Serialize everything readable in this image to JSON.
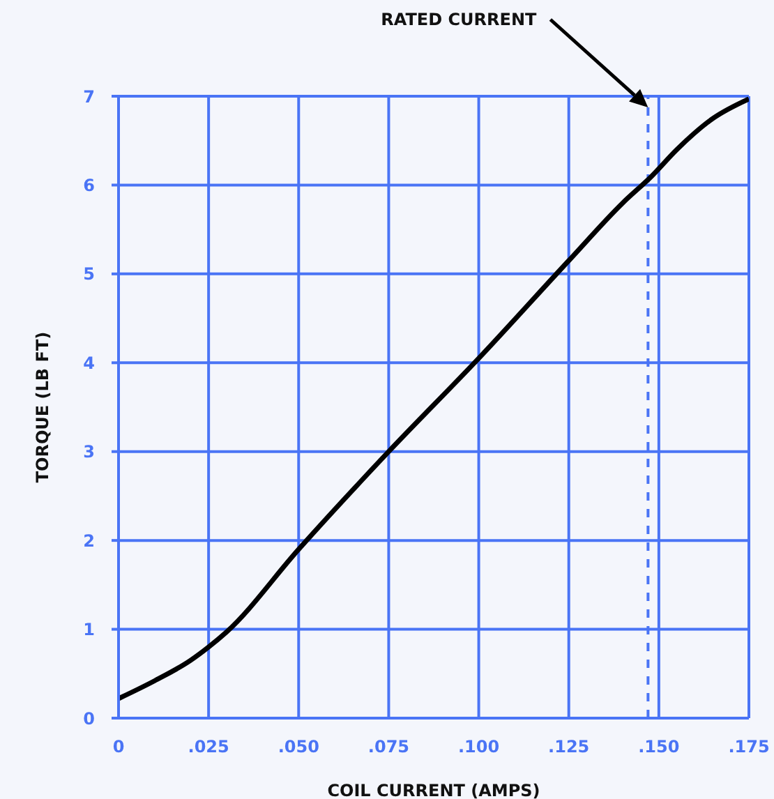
{
  "chart_data": {
    "type": "line",
    "xlabel": "COIL CURRENT (AMPS)",
    "ylabel": "TORQUE (LB FT)",
    "x": [
      0,
      0.01,
      0.02,
      0.025,
      0.03,
      0.05,
      0.075,
      0.1,
      0.125,
      0.14,
      0.148,
      0.155,
      0.165,
      0.175
    ],
    "series": [
      {
        "color": "#000000",
        "values": [
          0.22,
          0.42,
          0.65,
          0.8,
          0.97,
          1.9,
          3.0,
          4.05,
          5.15,
          5.8,
          6.1,
          6.4,
          6.75,
          6.97
        ]
      }
    ],
    "xlim": [
      0,
      0.175
    ],
    "xticks": [
      0,
      {
        "value": 0.025,
        "label": ".025"
      },
      {
        "value": 0.05,
        "label": ".050"
      },
      {
        "value": 0.075,
        "label": ".075"
      },
      {
        "value": 0.1,
        "label": ".100"
      },
      {
        "value": 0.125,
        "label": ".125"
      },
      {
        "value": 0.15,
        "label": ".150"
      },
      {
        "value": 0.175,
        "label": ".175"
      }
    ],
    "ylim": [
      0,
      7
    ],
    "yticks": [
      0,
      1,
      2,
      3,
      4,
      5,
      6,
      7
    ],
    "ref_lines": [
      {
        "axis": "x",
        "value": 0.147,
        "color": "#4a74f5",
        "line_style": "dashed"
      }
    ],
    "annotations": [
      "RATED CURRENT"
    ],
    "grid": true,
    "marker": "none",
    "line_style": "solid"
  }
}
